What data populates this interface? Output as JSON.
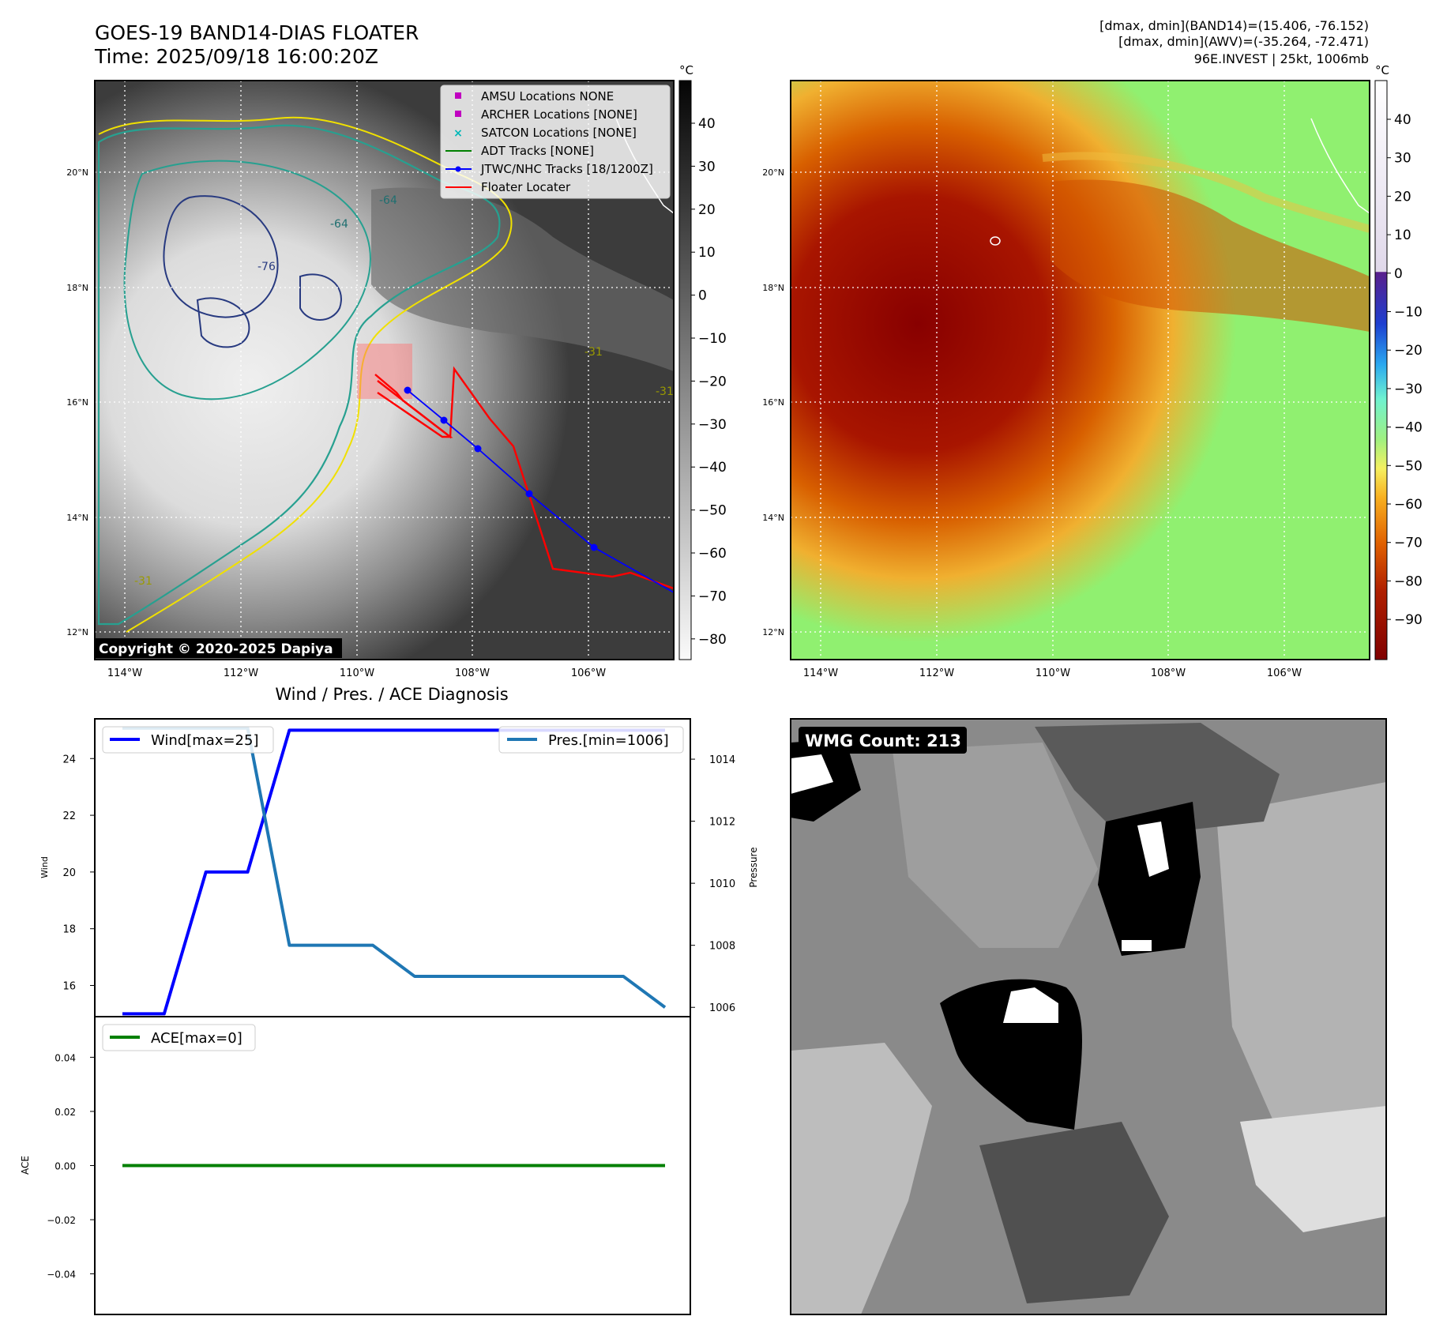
{
  "header": {
    "title_line1": "GOES-19 BAND14-DIAS FLOATER",
    "title_line2": "Time: 2025/09/18 16:00:20Z",
    "info_line1": "[dmax, dmin](BAND14)=(15.406, -76.152)",
    "info_line2": "[dmax, dmin](AWV)=(-35.264, -72.471)",
    "info_line3": "96E.INVEST | 25kt, 1006mb"
  },
  "map_axes": {
    "lon_labels": [
      "114°W",
      "112°W",
      "110°W",
      "108°W",
      "106°W"
    ],
    "lat_labels": [
      "20°N",
      "18°N",
      "16°N",
      "14°N",
      "12°N"
    ],
    "copyright": "Copyright © 2020-2025 Dapiya"
  },
  "colorbar_left": {
    "unit": "°C",
    "ticks": [
      "40",
      "30",
      "20",
      "10",
      "0",
      "−10",
      "−20",
      "−30",
      "−40",
      "−50",
      "−60",
      "−70",
      "−80"
    ]
  },
  "colorbar_right": {
    "unit": "°C",
    "ticks": [
      "40",
      "30",
      "20",
      "10",
      "0",
      "−10",
      "−20",
      "−30",
      "−40",
      "−50",
      "−60",
      "−70",
      "−80",
      "−90"
    ]
  },
  "map_legend": [
    {
      "label": "AMSU Locations NONE",
      "color": "#c000c0",
      "marker": "square"
    },
    {
      "label": "ARCHER Locations [NONE]",
      "color": "#c000c0",
      "marker": "square"
    },
    {
      "label": "SATCON Locations [NONE]",
      "color": "#00b8b8",
      "marker": "x"
    },
    {
      "label": "ADT Tracks [NONE]",
      "color": "#008000",
      "marker": "line"
    },
    {
      "label": "JTWC/NHC Tracks [18/1200Z]",
      "color": "#0000ff",
      "marker": "line-dot"
    },
    {
      "label": "Floater Locater",
      "color": "#ff0000",
      "marker": "line"
    }
  ],
  "contour_labels": [
    "-64",
    "-64",
    "-76",
    "-31",
    "-31",
    "-31"
  ],
  "chart_data": [
    {
      "type": "line",
      "title": "Wind / Pres. / ACE Diagnosis",
      "ylabel": "Wind",
      "ylabel_right": "Pressure",
      "ylim": [
        14.9,
        25.4
      ],
      "ylim_right": [
        1005.7,
        1015.3
      ],
      "yticks": [
        "24",
        "22",
        "20",
        "18",
        "16"
      ],
      "yticks_right": [
        "1014",
        "1012",
        "1010",
        "1008",
        "1006"
      ],
      "x": [
        0,
        1,
        2,
        3,
        4,
        5,
        6,
        7,
        8,
        9,
        10,
        11,
        12,
        13
      ],
      "series": [
        {
          "name": "Wind[max=25]",
          "color": "#0000ff",
          "axis": "left",
          "values": [
            15,
            15,
            20,
            20,
            25,
            25,
            25,
            25,
            25,
            25,
            25,
            25,
            25,
            25
          ]
        },
        {
          "name": "Pres.[min=1006]",
          "color": "#1f77b4",
          "axis": "right",
          "values": [
            1015,
            1015,
            1015,
            1015,
            1008,
            1008,
            1008,
            1007,
            1007,
            1007,
            1007,
            1007,
            1007,
            1006
          ]
        }
      ]
    },
    {
      "type": "line",
      "ylabel": "ACE",
      "ylim": [
        -0.055,
        0.055
      ],
      "yticks": [
        "0.04",
        "0.02",
        "0.00",
        "−0.02",
        "−0.04"
      ],
      "x": [
        0,
        13
      ],
      "series": [
        {
          "name": "ACE[max=0]",
          "color": "#008000",
          "values": [
            0,
            0
          ]
        }
      ]
    }
  ],
  "wmg_panel": {
    "label": "WMG Count: 213"
  }
}
